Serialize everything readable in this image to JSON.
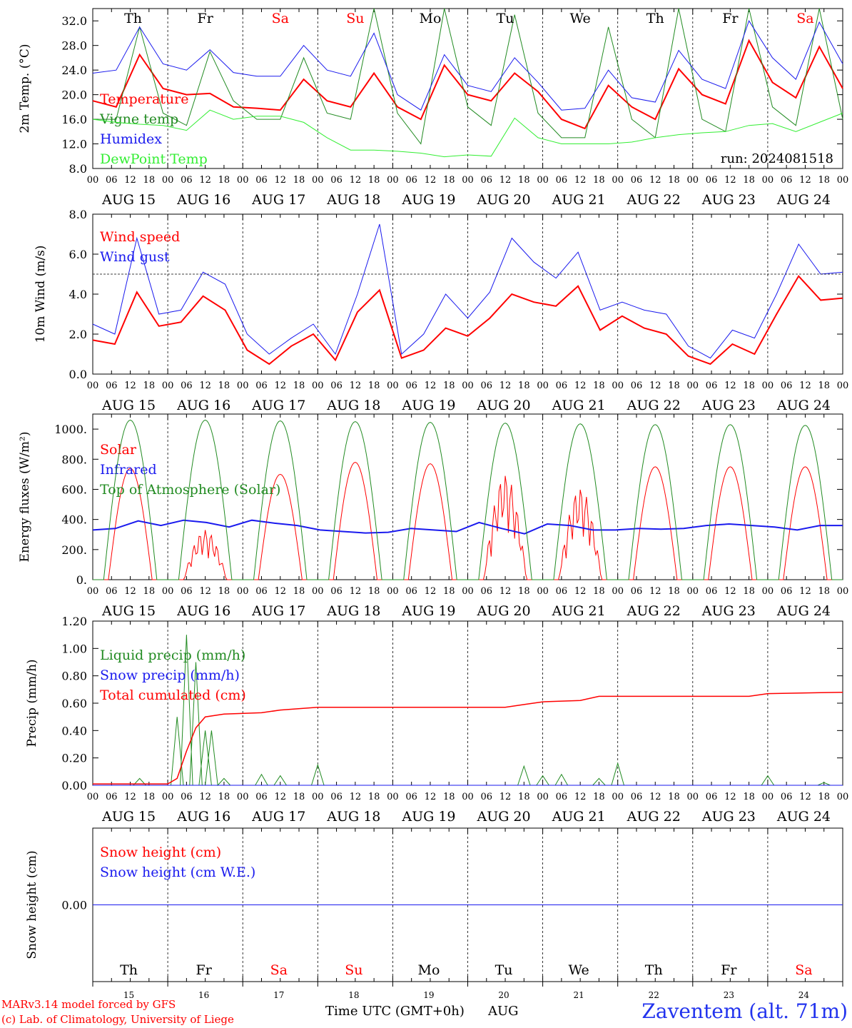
{
  "run_label": "run: 2024081518",
  "hour_ticks": [
    "00",
    "06",
    "12",
    "18"
  ],
  "date_labels": [
    "AUG 15",
    "AUG 16",
    "AUG 17",
    "AUG 18",
    "AUG 19",
    "AUG 20",
    "AUG 21",
    "AUG 22",
    "AUG 23",
    "AUG 24"
  ],
  "weekdays": [
    {
      "label": "Th",
      "color": "#000000"
    },
    {
      "label": "Fr",
      "color": "#000000"
    },
    {
      "label": "Sa",
      "color": "#ff0000"
    },
    {
      "label": "Su",
      "color": "#ff0000"
    },
    {
      "label": "Mo",
      "color": "#000000"
    },
    {
      "label": "Tu",
      "color": "#000000"
    },
    {
      "label": "We",
      "color": "#000000"
    },
    {
      "label": "Th",
      "color": "#000000"
    },
    {
      "label": "Fr",
      "color": "#000000"
    },
    {
      "label": "Sa",
      "color": "#ff0000"
    }
  ],
  "day_numbers": [
    "15",
    "16",
    "17",
    "18",
    "19",
    "20",
    "21",
    "22",
    "23",
    "24"
  ],
  "footer": {
    "model_line": "MARv3.14 model forced by GFS",
    "lab_line": "(c) Lab. of Climatology, University of Liege",
    "time_axis_label": "Time UTC (GMT+0h)",
    "month_label": "AUG",
    "station": "Zaventem (alt. 71m)"
  },
  "colors": {
    "red": "#ff0000",
    "green": "#228b22",
    "blue": "#1a1aee",
    "lightgreen": "#33ee33"
  },
  "chart_data": [
    {
      "type": "line",
      "ylabel": "2m Temp. (°C)",
      "ylim": [
        8,
        34
      ],
      "yticks": [
        "8.0",
        "12.0",
        "16.0",
        "20.0",
        "24.0",
        "28.0",
        "32.0"
      ],
      "ytick_values": [
        8,
        12,
        16,
        20,
        24,
        28,
        32
      ],
      "x_hours": [
        0,
        6,
        12,
        18,
        24,
        30,
        36,
        42,
        48,
        54,
        60,
        66,
        72,
        78,
        84,
        90,
        96,
        102,
        108,
        114,
        120,
        126,
        132,
        138,
        144,
        150,
        156,
        162,
        168,
        174,
        180,
        186,
        192,
        198,
        204,
        210,
        216,
        222,
        228,
        234,
        240
      ],
      "series": [
        {
          "name": "Temperature",
          "color": "#ff0000",
          "width": 2,
          "values": [
            19,
            18,
            26.5,
            21,
            20,
            20.2,
            18,
            17.8,
            17.5,
            22.5,
            19,
            18,
            23.5,
            18,
            16,
            24.8,
            20,
            19,
            23.5,
            20.5,
            16,
            14.5,
            21.5,
            18,
            16,
            24.2,
            20,
            18.5,
            28.8,
            22,
            19.5,
            27.8,
            21
          ]
        },
        {
          "name": "Vigne temp",
          "color": "#228b22",
          "width": 1,
          "values": [
            16,
            16,
            31,
            17,
            15,
            27,
            19,
            16,
            16,
            26,
            17,
            16,
            34,
            17,
            12,
            34,
            18,
            15,
            33,
            17,
            13,
            13,
            31,
            16,
            13,
            34,
            16,
            14,
            34,
            18,
            15,
            34,
            16
          ]
        },
        {
          "name": "Humidex",
          "color": "#1a1aee",
          "width": 1,
          "values": [
            23.5,
            24,
            31,
            25,
            24,
            27.3,
            23.6,
            23,
            23,
            28,
            24,
            23,
            30,
            20,
            17.5,
            26.5,
            21.5,
            20.5,
            26,
            22,
            17.5,
            17.8,
            24,
            19.5,
            18.8,
            27.2,
            22.5,
            21,
            32,
            26,
            22.5,
            31.8,
            25
          ]
        },
        {
          "name": "DewPoint Temp",
          "color": "#33ee33",
          "width": 1,
          "values": [
            16,
            15.5,
            15.2,
            15,
            14.2,
            17.5,
            16,
            16.5,
            16.5,
            15.5,
            13,
            11,
            11,
            10.8,
            10.5,
            9.9,
            10.2,
            10,
            16.2,
            13,
            12,
            12,
            12,
            12.3,
            13,
            13.5,
            13.8,
            14,
            15,
            15.3,
            14,
            15.5,
            17
          ]
        }
      ]
    },
    {
      "type": "line",
      "ylabel": "10m Wind (m/s)",
      "ylim": [
        0,
        8
      ],
      "yticks": [
        "0.0",
        "2.0",
        "4.0",
        "6.0",
        "8.0"
      ],
      "ytick_values": [
        0,
        2,
        4,
        6,
        8
      ],
      "threshold": 5,
      "series": [
        {
          "name": "Wind speed",
          "color": "#ff0000",
          "width": 2,
          "values": [
            1.7,
            1.5,
            4.1,
            2.4,
            2.6,
            3.9,
            3.2,
            1.2,
            0.5,
            1.4,
            2.0,
            0.7,
            3.1,
            4.2,
            0.8,
            1.2,
            2.3,
            1.9,
            2.8,
            4.0,
            3.6,
            3.4,
            4.4,
            2.2,
            2.9,
            2.3,
            2.0,
            0.9,
            0.5,
            1.5,
            1.0,
            3.0,
            4.9,
            3.7,
            3.8
          ]
        },
        {
          "name": "Wind gust",
          "color": "#1a1aee",
          "width": 1,
          "values": [
            2.5,
            2.0,
            6.8,
            3.0,
            3.2,
            5.1,
            4.5,
            2.0,
            1.0,
            1.8,
            2.5,
            1.0,
            4.0,
            7.5,
            1.0,
            2.0,
            4.0,
            2.8,
            4.1,
            6.8,
            5.6,
            4.8,
            6.1,
            3.2,
            3.6,
            3.2,
            3.0,
            1.4,
            0.8,
            2.2,
            1.8,
            4.0,
            6.5,
            5.0,
            5.1
          ]
        }
      ]
    },
    {
      "type": "line",
      "ylabel": "Energy fluxes (W/m²)",
      "ylim": [
        0,
        1100
      ],
      "yticks": [
        "0.",
        "200.",
        "400.",
        "600.",
        "800.",
        "1000."
      ],
      "ytick_values": [
        0,
        200,
        400,
        600,
        800,
        1000
      ],
      "series": [
        {
          "name": "Solar",
          "color": "#ff0000",
          "width": 1,
          "peaks": [
            740,
            330,
            700,
            780,
            770,
            700,
            610,
            750,
            750,
            750
          ]
        },
        {
          "name": "Infrared",
          "color": "#1a1aee",
          "width": 2,
          "values": [
            330,
            340,
            390,
            360,
            395,
            380,
            350,
            395,
            375,
            360,
            330,
            320,
            310,
            315,
            340,
            330,
            320,
            380,
            340,
            305,
            370,
            360,
            330,
            330,
            340,
            335,
            340,
            360,
            370,
            360,
            350,
            330,
            360,
            360
          ]
        },
        {
          "name": "Top of Atmosphere (Solar)",
          "color": "#228b22",
          "width": 1,
          "peaks": [
            1060,
            1060,
            1055,
            1050,
            1045,
            1040,
            1035,
            1030,
            1030,
            1025
          ]
        }
      ]
    },
    {
      "type": "line",
      "ylabel": "Precip (mm/h)",
      "ylim": [
        0,
        1.2
      ],
      "yticks": [
        "0.00",
        "0.20",
        "0.40",
        "0.60",
        "0.80",
        "1.00",
        "1.20"
      ],
      "ytick_values": [
        0,
        0.2,
        0.4,
        0.6,
        0.8,
        1.0,
        1.2
      ],
      "series": [
        {
          "name": "Liquid precip (mm/h)",
          "color": "#228b22",
          "width": 1,
          "events": [
            [
              15,
              0.05
            ],
            [
              27,
              0.5
            ],
            [
              30,
              1.1
            ],
            [
              33,
              0.9
            ],
            [
              36,
              0.4
            ],
            [
              38,
              0.4
            ],
            [
              42,
              0.05
            ],
            [
              54,
              0.08
            ],
            [
              60,
              0.07
            ],
            [
              72,
              0.15
            ],
            [
              138,
              0.14
            ],
            [
              144,
              0.07
            ],
            [
              150,
              0.08
            ],
            [
              162,
              0.05
            ],
            [
              168,
              0.16
            ],
            [
              216,
              0.07
            ],
            [
              234,
              0.02
            ]
          ]
        },
        {
          "name": "Snow precip (mm/h)",
          "color": "#1a1aee",
          "width": 1,
          "values": [
            0
          ]
        },
        {
          "name": "Total cumulated (cm)",
          "color": "#ff0000",
          "width": 1.5,
          "steps": [
            [
              0,
              0.01
            ],
            [
              24,
              0.01
            ],
            [
              27,
              0.05
            ],
            [
              30,
              0.25
            ],
            [
              33,
              0.42
            ],
            [
              36,
              0.5
            ],
            [
              42,
              0.52
            ],
            [
              54,
              0.53
            ],
            [
              60,
              0.55
            ],
            [
              72,
              0.57
            ],
            [
              132,
              0.57
            ],
            [
              138,
              0.59
            ],
            [
              144,
              0.61
            ],
            [
              156,
              0.62
            ],
            [
              162,
              0.65
            ],
            [
              210,
              0.65
            ],
            [
              216,
              0.67
            ],
            [
              240,
              0.68
            ]
          ]
        }
      ]
    },
    {
      "type": "line",
      "ylabel": "Snow height (cm)",
      "ylim": [
        -1,
        1
      ],
      "yticks": [
        "0.00"
      ],
      "ytick_values": [
        0
      ],
      "series": [
        {
          "name": "Snow height (cm)",
          "color": "#ff0000",
          "width": 1,
          "values": [
            0,
            0
          ]
        },
        {
          "name": "Snow height (cm W.E.)",
          "color": "#1a1aee",
          "width": 1,
          "values": [
            0,
            0
          ]
        }
      ]
    }
  ]
}
